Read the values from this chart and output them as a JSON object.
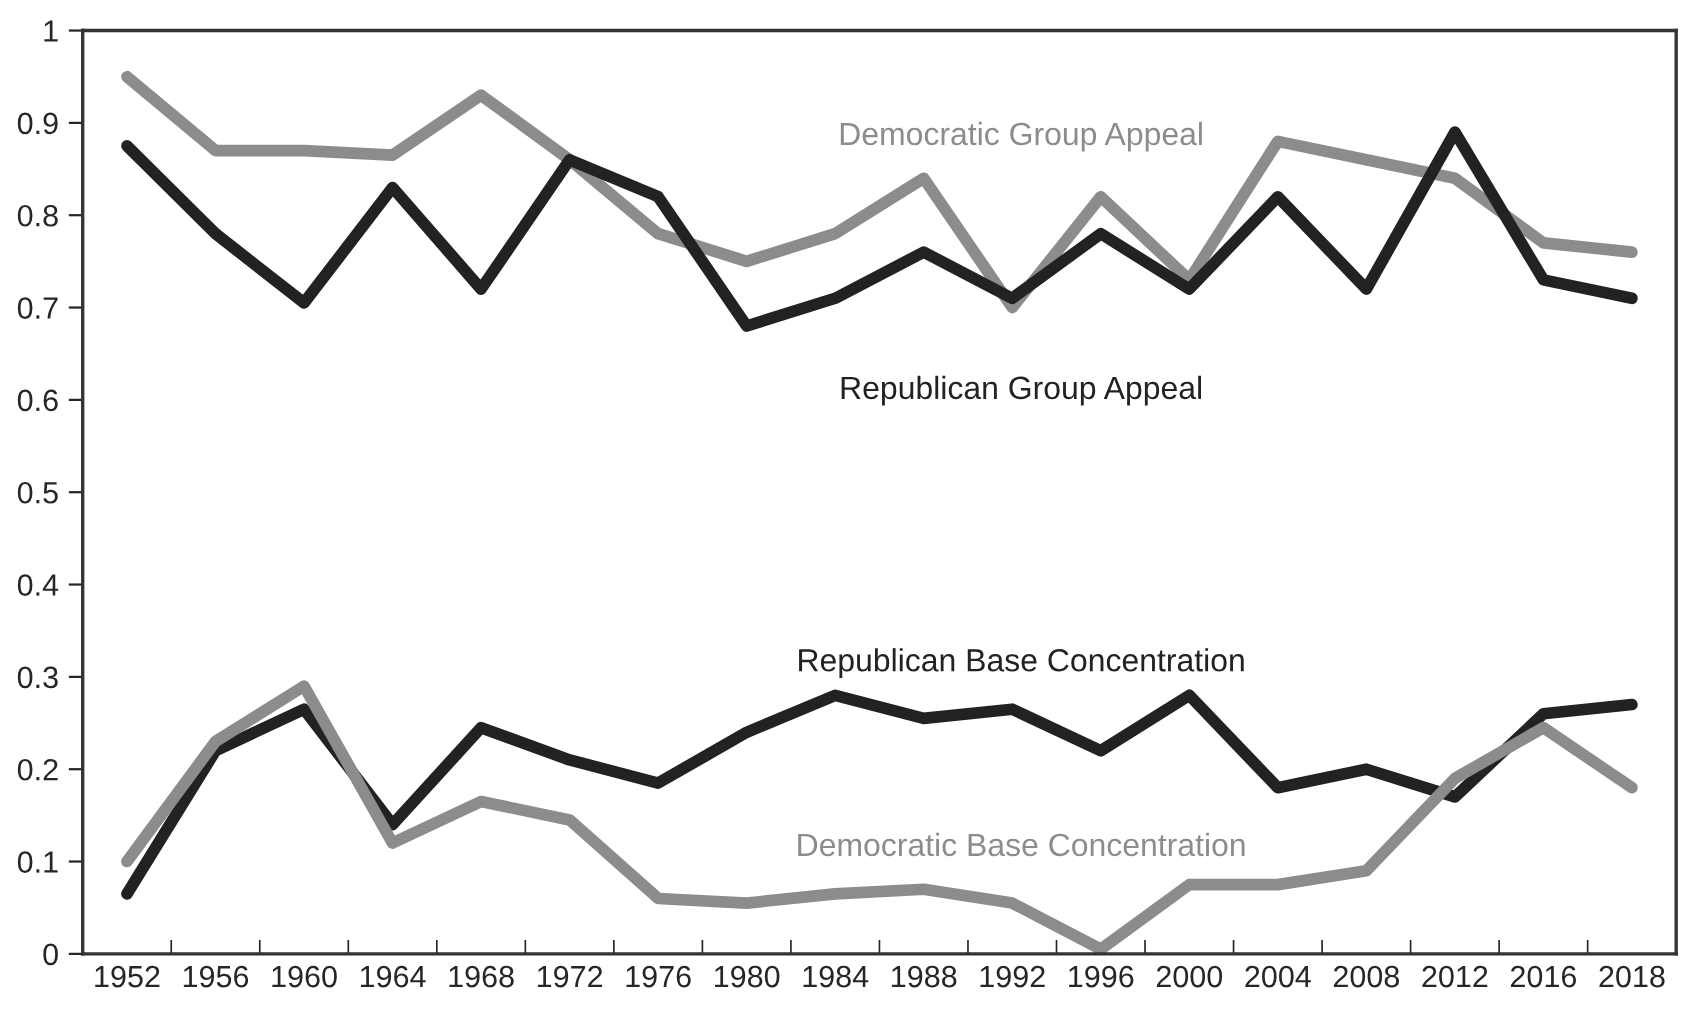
{
  "chart_data": {
    "type": "line",
    "categories": [
      "1952",
      "1956",
      "1960",
      "1964",
      "1968",
      "1972",
      "1976",
      "1980",
      "1984",
      "1988",
      "1992",
      "1996",
      "2000",
      "2004",
      "2008",
      "2012",
      "2016",
      "2018"
    ],
    "series": [
      {
        "name": "Democratic Group Appeal",
        "color": "#8c8c8c",
        "values": [
          0.95,
          0.87,
          0.87,
          0.865,
          0.93,
          0.86,
          0.78,
          0.75,
          0.78,
          0.84,
          0.7,
          0.82,
          0.73,
          0.88,
          0.86,
          0.84,
          0.77,
          0.76
        ]
      },
      {
        "name": "Republican Group Appeal",
        "color": "#222222",
        "values": [
          0.875,
          0.78,
          0.705,
          0.83,
          0.72,
          0.86,
          0.82,
          0.68,
          0.71,
          0.76,
          0.71,
          0.78,
          0.72,
          0.82,
          0.72,
          0.89,
          0.73,
          0.71
        ]
      },
      {
        "name": "Republican Base Concentration",
        "color": "#222222",
        "values": [
          0.065,
          0.22,
          0.265,
          0.14,
          0.245,
          0.21,
          0.185,
          0.24,
          0.28,
          0.255,
          0.265,
          0.22,
          0.28,
          0.18,
          0.2,
          0.17,
          0.26,
          0.27
        ]
      },
      {
        "name": "Democratic Base Concentration",
        "color": "#8c8c8c",
        "values": [
          0.1,
          0.23,
          0.29,
          0.12,
          0.165,
          0.145,
          0.06,
          0.055,
          0.065,
          0.07,
          0.055,
          0.005,
          0.075,
          0.075,
          0.09,
          0.19,
          0.245,
          0.18
        ]
      }
    ],
    "ylim": [
      0,
      1
    ],
    "yticks": [
      0,
      0.1,
      0.2,
      0.3,
      0.4,
      0.5,
      0.6,
      0.7,
      0.8,
      0.9,
      1
    ],
    "grid": false,
    "legend": false,
    "marker": "none",
    "line_style": "solid"
  }
}
